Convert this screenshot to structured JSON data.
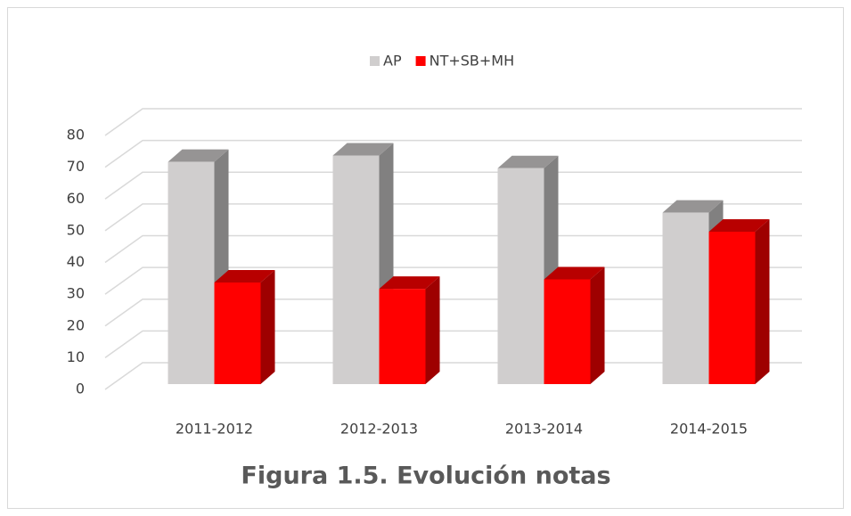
{
  "chart_data": {
    "type": "bar3d",
    "title": "Figura 1.5. Evolución notas",
    "categories": [
      "2011-2012",
      "2012-2013",
      "2013-2014",
      "2014-2015"
    ],
    "series": [
      {
        "name": "AP",
        "color": "#d0cece",
        "values": [
          70,
          72,
          68,
          54
        ]
      },
      {
        "name": "NT+SB+MH",
        "color": "#ff0000",
        "values": [
          32,
          30,
          33,
          48
        ]
      }
    ],
    "ylim": [
      0,
      80
    ],
    "yticks": [
      0,
      10,
      20,
      30,
      40,
      50,
      60,
      70,
      80
    ],
    "grid": true,
    "legend": "top"
  }
}
